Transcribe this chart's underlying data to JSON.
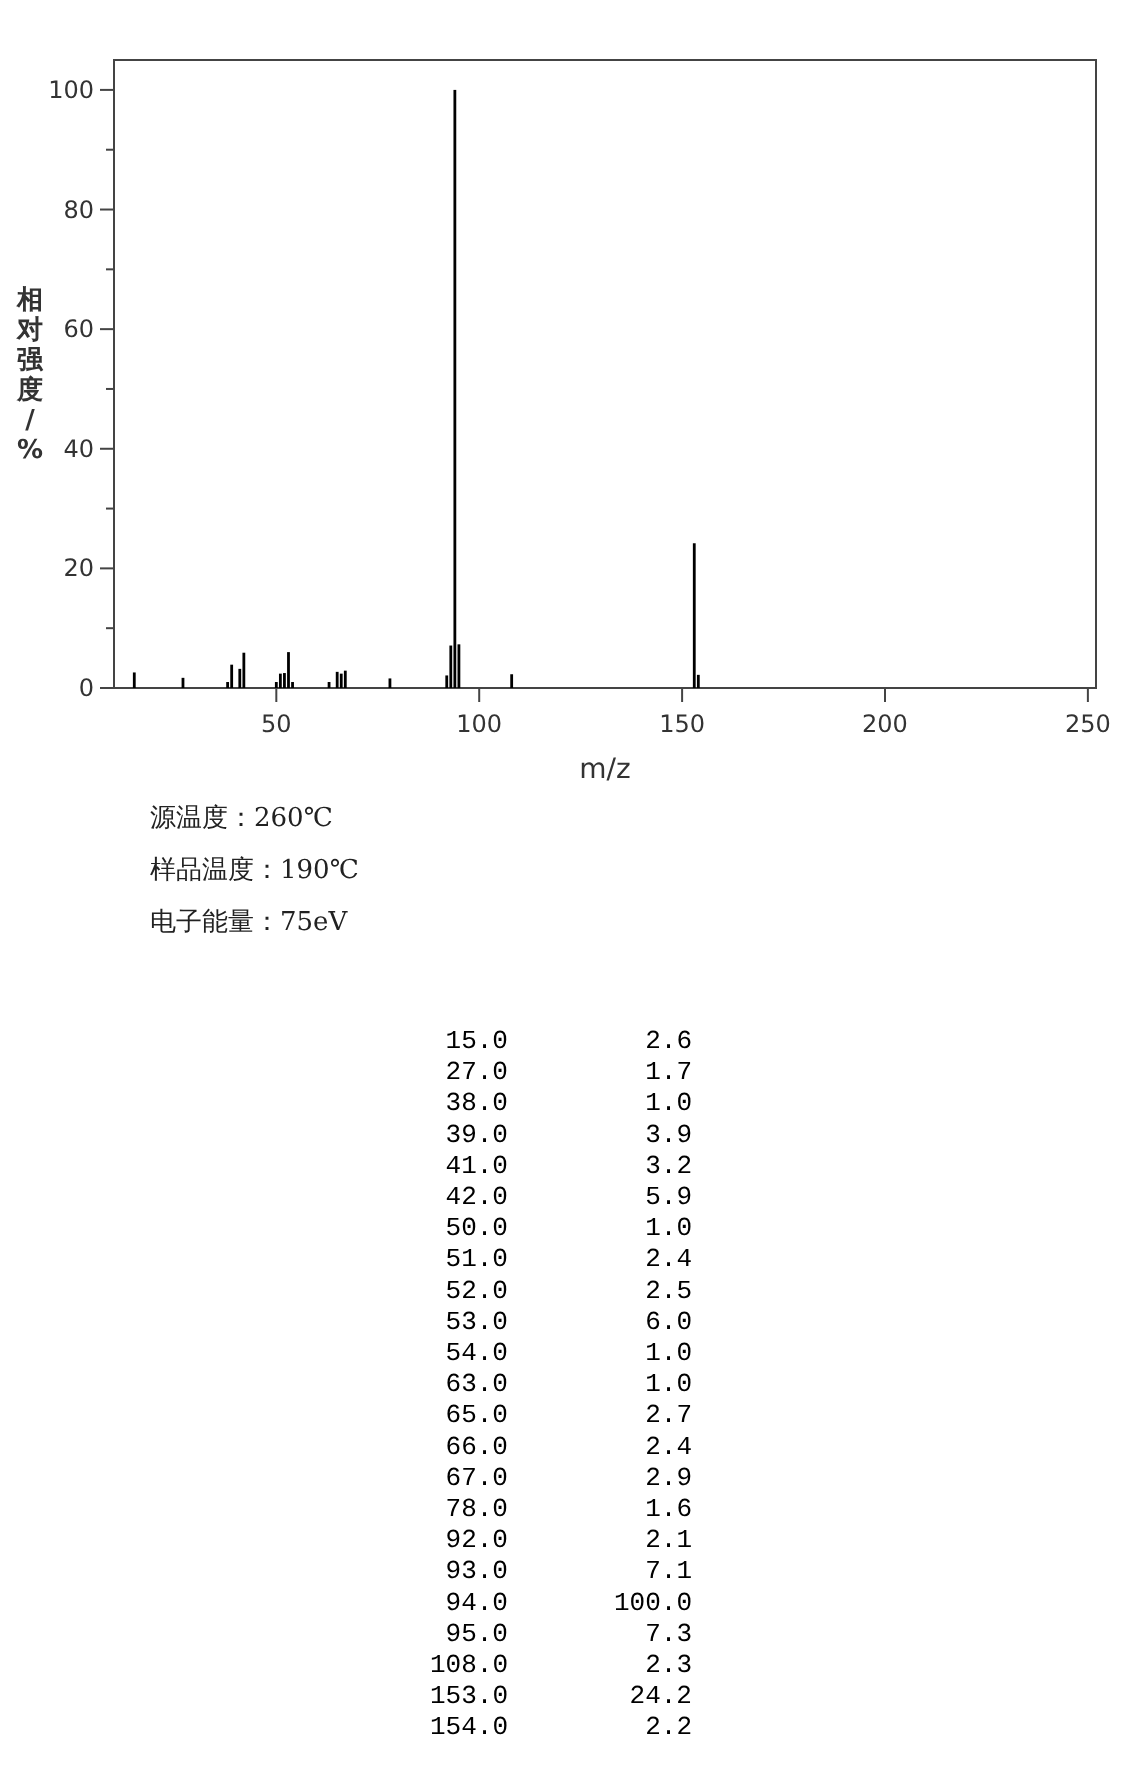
{
  "chart_data": {
    "type": "bar",
    "x": [
      15,
      27,
      38,
      39,
      41,
      42,
      50,
      51,
      52,
      53,
      54,
      63,
      65,
      66,
      67,
      78,
      92,
      93,
      94,
      95,
      108,
      153,
      154
    ],
    "values": [
      2.6,
      1.7,
      1.0,
      3.9,
      3.2,
      5.9,
      1.0,
      2.4,
      2.5,
      6.0,
      1.0,
      1.0,
      2.7,
      2.4,
      2.9,
      1.6,
      2.1,
      7.1,
      100.0,
      7.3,
      2.3,
      24.2,
      2.2
    ],
    "color": "#000000",
    "xlabel": "m/z",
    "ylabel": "相对强度/%",
    "xlim": [
      10,
      252
    ],
    "xticks": [
      50,
      100,
      150,
      200,
      250
    ],
    "ylim": [
      0,
      105
    ],
    "yticks": [
      0,
      {
        "value": 10,
        "label": null
      },
      20,
      {
        "value": 30,
        "label": null
      },
      40,
      {
        "value": 50,
        "label": null
      },
      60,
      {
        "value": 70,
        "label": null
      },
      80,
      {
        "value": 90,
        "label": null
      },
      100
    ],
    "annotations": [
      "源温度：260℃",
      "样品温度：190℃",
      "电子能量：75eV",
      "15.0",
      "2.6",
      "27.0",
      "1.7",
      "38.0",
      "1.0",
      "39.0",
      "3.9",
      "41.0",
      "3.2",
      "42.0",
      "5.9",
      "50.0",
      "1.0",
      "51.0",
      "2.4",
      "52.0",
      "2.5",
      "53.0",
      "6.0",
      "54.0",
      "1.0",
      "63.0",
      "1.0",
      "65.0",
      "2.7",
      "66.0",
      "2.4",
      "67.0",
      "2.9",
      "78.0",
      "1.6",
      "92.0",
      "2.1",
      "93.0",
      "7.1",
      "94.0",
      "100.0",
      "95.0",
      "7.3",
      "108.0",
      "2.3",
      "153.0",
      "24.2",
      "154.0",
      "2.2"
    ]
  }
}
